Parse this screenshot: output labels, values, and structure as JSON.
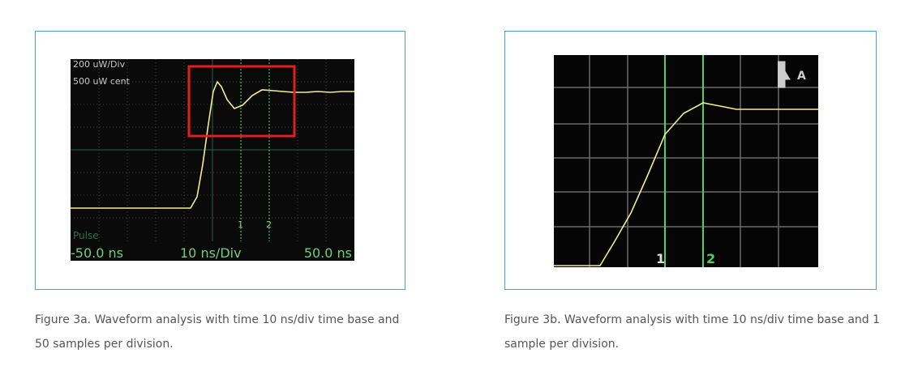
{
  "figures": [
    {
      "screen": {
        "scale": "200 uW/Div",
        "center": "500 uW cent",
        "mode": "Pulse",
        "left_time": "-50.0 ns",
        "time_base": "10 ns/Div",
        "right_time": "50.0 ns",
        "cursor_1": "1",
        "cursor_2": "2"
      },
      "caption": "Figure 3a. Waveform analysis with time 10 ns/div time base and 50 samples per division."
    },
    {
      "screen": {
        "cursor_1": "1",
        "cursor_2": "2",
        "channel": "A"
      },
      "caption": "Figure 3b. Waveform analysis with time 10 ns/div time base and 1 sample per division."
    }
  ]
}
